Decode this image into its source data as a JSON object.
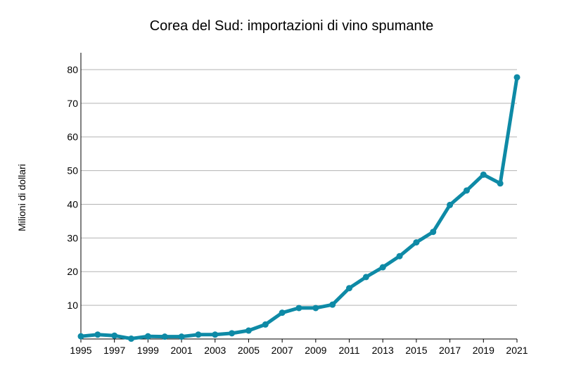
{
  "chart_data": {
    "type": "line",
    "title": "Corea del Sud: importazioni di vino spumante",
    "xlabel": "",
    "ylabel": "Milioni di dollari",
    "xlim": [
      1995,
      2021
    ],
    "ylim": [
      0,
      85
    ],
    "x_ticks": [
      "1995",
      "1997",
      "1999",
      "2001",
      "2003",
      "2005",
      "2007",
      "2009",
      "2011",
      "2013",
      "2015",
      "2017",
      "2019",
      "2021"
    ],
    "y_ticks": [
      10,
      20,
      30,
      40,
      50,
      60,
      70,
      80
    ],
    "grid": "horizontal",
    "series": [
      {
        "color": "#0e8aa6",
        "x": [
          1995,
          1996,
          1997,
          1998,
          1999,
          2000,
          2001,
          2002,
          2003,
          2004,
          2005,
          2006,
          2007,
          2008,
          2009,
          2010,
          2011,
          2012,
          2013,
          2014,
          2015,
          2016,
          2017,
          2018,
          2019,
          2020,
          2021
        ],
        "values": [
          0.8,
          1.3,
          1.0,
          0.1,
          0.8,
          0.7,
          0.7,
          1.3,
          1.3,
          1.7,
          2.5,
          4.3,
          7.8,
          9.2,
          9.2,
          10.2,
          15.1,
          18.4,
          21.3,
          24.6,
          28.7,
          31.8,
          39.8,
          44.1,
          48.8,
          46.2,
          77.7
        ]
      }
    ]
  }
}
